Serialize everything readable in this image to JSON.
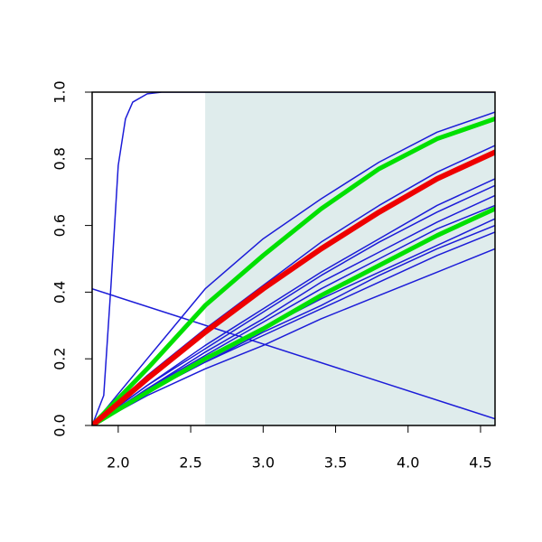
{
  "chart_data": {
    "type": "line",
    "x": [
      1.82,
      2.2,
      2.6,
      3.0,
      3.4,
      3.8,
      4.2,
      4.6
    ],
    "xlim": [
      1.82,
      4.6
    ],
    "ylim": [
      0,
      1
    ],
    "xticks": [
      {
        "value": 2,
        "label": "2.0"
      },
      2.5,
      {
        "value": 3,
        "label": "3.0"
      },
      3.5,
      {
        "value": 4,
        "label": "4.0"
      },
      4.5
    ],
    "yticks": [
      {
        "value": 0,
        "label": "0.0"
      },
      0.2,
      0.4,
      0.6,
      0.8,
      {
        "value": 1,
        "label": "1.0"
      }
    ],
    "shade": {
      "xlim": [
        2.6,
        4.6
      ],
      "color": "#dfecec"
    },
    "series": [
      {
        "color": "#1c1cd8",
        "width": 1.5,
        "x": [
          1.82,
          1.9,
          1.95,
          2.0,
          2.05,
          2.1,
          2.2,
          2.3,
          4.6
        ],
        "values": [
          0,
          0.09,
          0.42,
          0.78,
          0.92,
          0.97,
          0.995,
          1,
          1
        ]
      },
      {
        "color": "#1c1cd8",
        "width": 1.5,
        "x": [
          1.82,
          4.6
        ],
        "values": [
          0.41,
          0.02
        ]
      },
      {
        "color": "#1c1cd8",
        "width": 1.5,
        "values": [
          0,
          0.2,
          0.41,
          0.56,
          0.68,
          0.79,
          0.88,
          0.94
        ]
      },
      {
        "color": "#1c1cd8",
        "width": 1.5,
        "values": [
          0,
          0.15,
          0.29,
          0.42,
          0.55,
          0.66,
          0.76,
          0.84
        ]
      },
      {
        "color": "#1c1cd8",
        "width": 1.5,
        "values": [
          0,
          0.12,
          0.24,
          0.35,
          0.46,
          0.56,
          0.66,
          0.74
        ]
      },
      {
        "color": "#1c1cd8",
        "width": 1.5,
        "values": [
          0,
          0.12,
          0.23,
          0.34,
          0.45,
          0.55,
          0.64,
          0.72
        ]
      },
      {
        "color": "#1c1cd8",
        "width": 1.5,
        "values": [
          0,
          0.11,
          0.22,
          0.32,
          0.43,
          0.52,
          0.61,
          0.69
        ]
      },
      {
        "color": "#1c1cd8",
        "width": 1.5,
        "values": [
          0,
          0.11,
          0.21,
          0.31,
          0.41,
          0.5,
          0.59,
          0.66
        ]
      },
      {
        "color": "#1c1cd8",
        "width": 1.5,
        "values": [
          0,
          0.1,
          0.2,
          0.29,
          0.38,
          0.46,
          0.54,
          0.62
        ]
      },
      {
        "color": "#1c1cd8",
        "width": 1.5,
        "values": [
          0,
          0.1,
          0.19,
          0.28,
          0.36,
          0.45,
          0.53,
          0.6
        ]
      },
      {
        "color": "#1c1cd8",
        "width": 1.5,
        "values": [
          0,
          0.1,
          0.19,
          0.27,
          0.35,
          0.43,
          0.51,
          0.58
        ]
      },
      {
        "color": "#1c1cd8",
        "width": 1.5,
        "values": [
          0,
          0.09,
          0.17,
          0.24,
          0.32,
          0.39,
          0.46,
          0.53
        ]
      },
      {
        "color": "#00e000",
        "width": 5,
        "values": [
          0,
          0.17,
          0.36,
          0.51,
          0.65,
          0.77,
          0.86,
          0.92
        ]
      },
      {
        "color": "#00e000",
        "width": 5,
        "values": [
          0,
          0.1,
          0.2,
          0.29,
          0.39,
          0.48,
          0.57,
          0.65
        ]
      },
      {
        "color": "#ee0000",
        "width": 6,
        "values": [
          0,
          0.14,
          0.28,
          0.41,
          0.53,
          0.64,
          0.74,
          0.82
        ]
      }
    ]
  }
}
